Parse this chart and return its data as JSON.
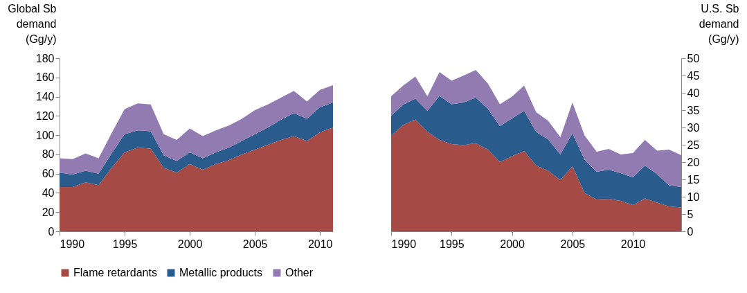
{
  "chart_data": [
    {
      "type": "area",
      "stacked": true,
      "ylabel": "Global Sb\ndemand\n(Gg/y)",
      "x": [
        1990,
        1991,
        1992,
        1993,
        1994,
        1995,
        1996,
        1997,
        1998,
        1999,
        2000,
        2001,
        2002,
        2003,
        2004,
        2005,
        2006,
        2007,
        2008,
        2009,
        2010,
        2011
      ],
      "xlim": [
        1990,
        2011
      ],
      "xticks": [
        1990,
        1995,
        2000,
        2005,
        2010
      ],
      "ylim": [
        0,
        180
      ],
      "yticks": [
        0,
        20,
        40,
        60,
        80,
        100,
        120,
        140,
        160,
        180
      ],
      "grid": false,
      "legend": "bottom",
      "series": [
        {
          "name": "Flame retardants",
          "color": "#a54a44",
          "values": [
            46,
            46,
            51,
            48,
            66,
            82,
            87,
            86,
            66,
            61,
            70,
            64,
            70,
            74,
            80,
            85,
            90,
            95,
            99,
            94,
            103,
            108
          ]
        },
        {
          "name": "Metallic products",
          "color": "#295c8c",
          "values": [
            15,
            13,
            12,
            12,
            15,
            19,
            18,
            18,
            13,
            12,
            12,
            12,
            12,
            13,
            14,
            16,
            18,
            21,
            24,
            23,
            26,
            26
          ]
        },
        {
          "name": "Other",
          "color": "#927bb0",
          "values": [
            15,
            16,
            18,
            16,
            21,
            26,
            28,
            28,
            22,
            22,
            25,
            23,
            23,
            23,
            23,
            25,
            24,
            23,
            23,
            18,
            18,
            18
          ]
        }
      ]
    },
    {
      "type": "area",
      "stacked": true,
      "y2label": "U.S. Sb\ndemand\n(Gg/y)",
      "x": [
        1990,
        1991,
        1992,
        1993,
        1994,
        1995,
        1996,
        1997,
        1998,
        1999,
        2000,
        2001,
        2002,
        2003,
        2004,
        2005,
        2006,
        2007,
        2008,
        2009,
        2010,
        2011,
        2012,
        2013,
        2014
      ],
      "xlim": [
        1990,
        2014
      ],
      "xticks": [
        1990,
        1995,
        2000,
        2005,
        2010
      ],
      "y2lim": [
        0,
        50
      ],
      "y2ticks": [
        0,
        5,
        10,
        15,
        20,
        25,
        30,
        35,
        40,
        45,
        50
      ],
      "grid": false,
      "series": [
        {
          "name": "Flame retardants",
          "color": "#a54a44",
          "axis": "y2",
          "values": [
            27.6,
            30.7,
            32.3,
            28.8,
            26.4,
            25.2,
            24.9,
            25.5,
            23.6,
            20.0,
            21.7,
            23.2,
            19.0,
            17.5,
            14.8,
            18.8,
            11.1,
            9.2,
            9.4,
            8.8,
            7.6,
            9.5,
            8.3,
            7.2,
            6.9
          ]
        },
        {
          "name": "Metallic products",
          "color": "#295c8c",
          "axis": "y2",
          "values": [
            5.8,
            5.9,
            6.0,
            6.0,
            12.7,
            11.5,
            12.3,
            13.1,
            11.8,
            10.4,
            10.9,
            11.6,
            9.7,
            9.0,
            7.4,
            9.5,
            9.6,
            8.0,
            8.4,
            8.0,
            8.0,
            9.5,
            8.2,
            6.1,
            5.9
          ]
        },
        {
          "name": "Other",
          "color": "#927bb0",
          "axis": "y2",
          "values": [
            5.6,
            5.5,
            6.4,
            4.2,
            6.9,
            6.8,
            7.8,
            8.0,
            7.3,
            6.3,
            6.3,
            7.3,
            5.7,
            5.4,
            5.0,
            8.9,
            7.0,
            5.8,
            6.0,
            5.4,
            7.0,
            7.4,
            6.8,
            10.3,
            9.2
          ]
        }
      ]
    }
  ]
}
